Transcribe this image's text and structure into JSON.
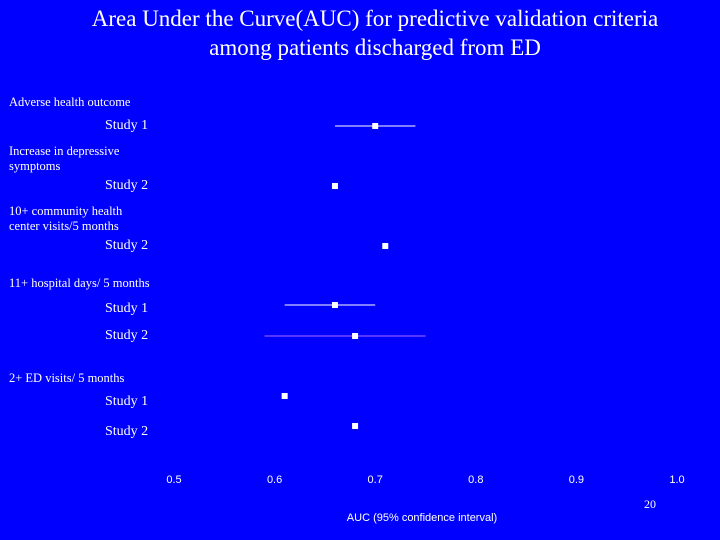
{
  "title_lines": [
    "Area Under the Curve(AUC) for predictive validation criteria",
    "among patients discharged from ED"
  ],
  "page_number": "20",
  "colors": {
    "background": "#0000ff",
    "text": "#ffffff",
    "marker": "#ffffff",
    "ci_line_primary": "#ffffff",
    "ci_line_secondary": "#b06aff"
  },
  "chart_data": {
    "type": "forest",
    "title": "Area Under the Curve(AUC) for predictive validation criteria among patients discharged from ED",
    "xlabel": "AUC (95% confidence interval)",
    "xlim": [
      0.5,
      1.0
    ],
    "xticks": [
      "0.5",
      "0.6",
      "0.7",
      "0.8",
      "0.9",
      "1.0"
    ],
    "groups": [
      {
        "outcome_lines": [
          "Adverse health outcome"
        ],
        "studies": [
          {
            "label": "Study 1",
            "auc": 0.7,
            "ci": [
              0.66,
              0.74
            ],
            "ci_color": "primary"
          }
        ]
      },
      {
        "outcome_lines": [
          "Increase in depressive",
          "symptoms"
        ],
        "studies": [
          {
            "label": "Study 2",
            "auc": 0.66,
            "ci": null,
            "ci_color": "primary"
          }
        ]
      },
      {
        "outcome_lines": [
          "10+ community health",
          "center visits/5 months"
        ],
        "studies": [
          {
            "label": "Study 2",
            "auc": 0.71,
            "ci": null,
            "ci_color": "primary"
          }
        ]
      },
      {
        "outcome_lines": [
          "11+ hospital days/ 5 months"
        ],
        "studies": [
          {
            "label": "Study 1",
            "auc": 0.66,
            "ci": [
              0.61,
              0.7
            ],
            "ci_color": "primary"
          },
          {
            "label": "Study 2",
            "auc": 0.68,
            "ci": [
              0.59,
              0.75
            ],
            "ci_color": "secondary"
          }
        ]
      },
      {
        "outcome_lines": [
          "2+ ED visits/ 5 months"
        ],
        "studies": [
          {
            "label": "Study 1",
            "auc": 0.61,
            "ci": null,
            "ci_color": "primary"
          },
          {
            "label": "Study 2",
            "auc": 0.68,
            "ci": null,
            "ci_color": "primary"
          }
        ]
      }
    ]
  }
}
